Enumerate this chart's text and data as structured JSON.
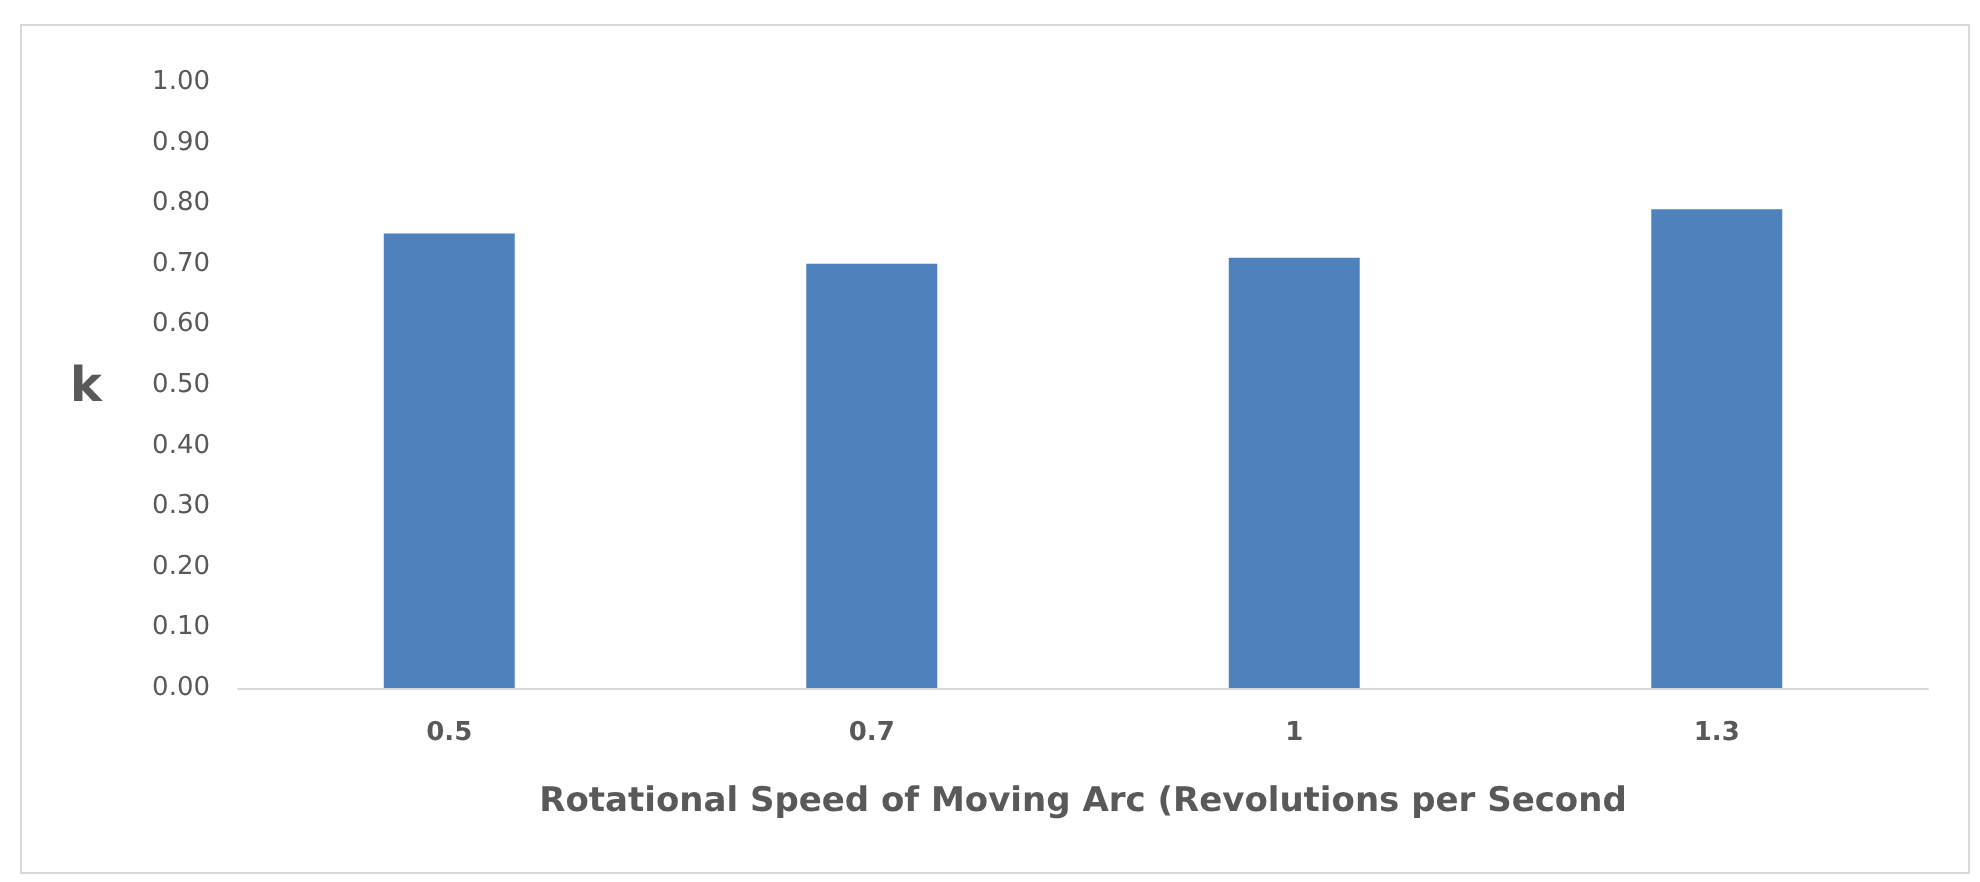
{
  "chart_data": {
    "type": "bar",
    "xlabel": "Rotational Speed of Moving Arc (Revolutions per Second",
    "ylabel": "k",
    "categories": [
      "0.5",
      "0.7",
      "1",
      "1.3"
    ],
    "values": [
      0.75,
      0.7,
      0.71,
      0.79
    ],
    "color": "#4f81bd",
    "ylim": [
      0,
      1
    ],
    "yticks": [
      {
        "value": 0,
        "label": "0.00"
      },
      {
        "value": 0.1,
        "label": "0.10"
      },
      {
        "value": 0.2,
        "label": "0.20"
      },
      {
        "value": 0.3,
        "label": "0.30"
      },
      {
        "value": 0.4,
        "label": "0.40"
      },
      {
        "value": 0.5,
        "label": "0.50"
      },
      {
        "value": 0.6,
        "label": "0.60"
      },
      {
        "value": 0.7,
        "label": "0.70"
      },
      {
        "value": 0.8,
        "label": "0.80"
      },
      {
        "value": 0.9,
        "label": "0.90"
      },
      {
        "value": 1,
        "label": "1.00"
      }
    ],
    "grid": false
  }
}
